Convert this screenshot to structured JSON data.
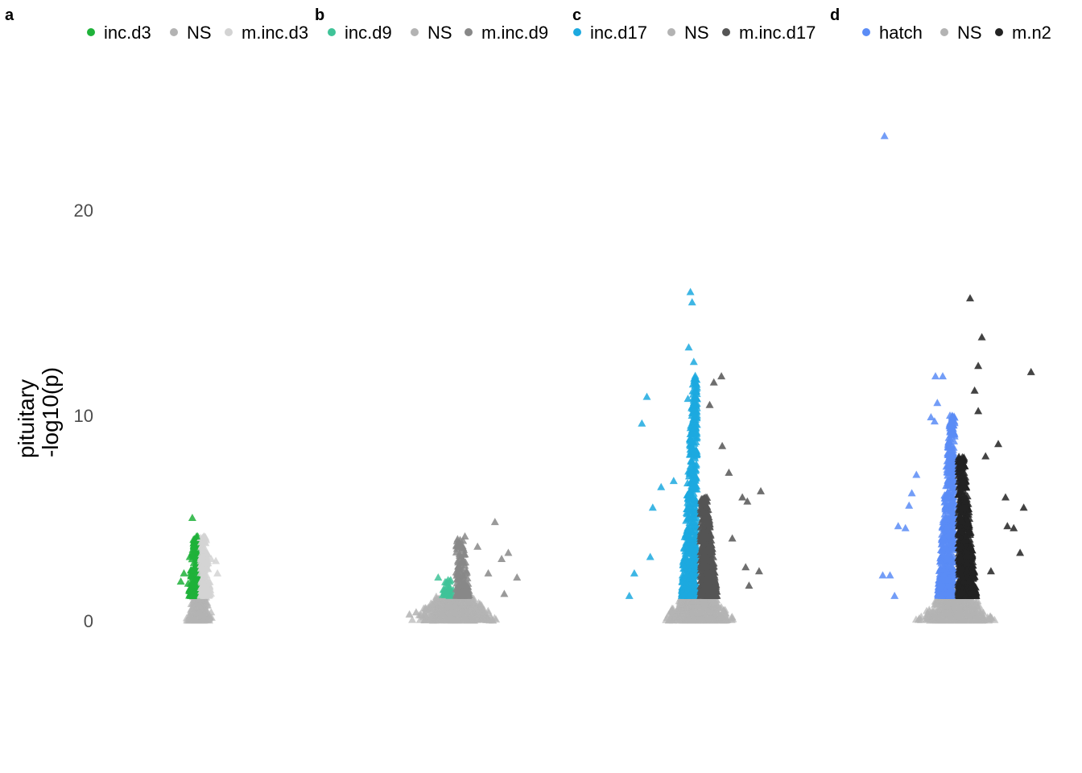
{
  "chart_data": {
    "type": "scatter",
    "ylabel": [
      "pituitary",
      "-log10(p)"
    ],
    "ylim": [
      -5,
      24.5
    ],
    "yticks": [
      0,
      10,
      20
    ],
    "grid": false,
    "legend_position": "top",
    "panels": [
      {
        "letter": "a",
        "legend": [
          {
            "name": "inc.d3",
            "color": "#1fb23a"
          },
          {
            "name": "NS",
            "color": "#b3b3b3"
          },
          {
            "name": "m.inc.d3",
            "color": "#d3d3d3"
          }
        ],
        "highlighted_points": [
          {
            "x": -1.4,
            "y": 5.0,
            "group": "inc.d3"
          },
          {
            "x": -0.6,
            "y": 4.1,
            "group": "inc.d3"
          },
          {
            "x": -1.0,
            "y": 3.6,
            "group": "inc.d3"
          },
          {
            "x": -1.9,
            "y": 3.1,
            "group": "inc.d3"
          },
          {
            "x": -3.0,
            "y": 2.3,
            "group": "inc.d3"
          },
          {
            "x": -3.6,
            "y": 1.9,
            "group": "inc.d3"
          },
          {
            "x": -2.2,
            "y": 1.8,
            "group": "inc.d3"
          },
          {
            "x": 0.8,
            "y": 4.1,
            "group": "m.inc.d3"
          },
          {
            "x": 2.2,
            "y": 3.0,
            "group": "m.inc.d3"
          },
          {
            "x": 3.1,
            "y": 2.9,
            "group": "m.inc.d3"
          },
          {
            "x": 3.4,
            "y": 2.3,
            "group": "m.inc.d3"
          },
          {
            "x": 1.5,
            "y": 1.5,
            "group": "m.inc.d3"
          }
        ]
      },
      {
        "letter": "b",
        "legend": [
          {
            "name": "inc.d9",
            "color": "#3fc398"
          },
          {
            "name": "NS",
            "color": "#b3b3b3"
          },
          {
            "name": "m.inc.d9",
            "color": "#888888"
          }
        ],
        "highlighted_points": [
          {
            "x": -2.5,
            "y": 2.1,
            "group": "inc.d9"
          },
          {
            "x": -0.8,
            "y": 1.9,
            "group": "inc.d9"
          },
          {
            "x": -1.6,
            "y": 1.5,
            "group": "inc.d9"
          },
          {
            "x": -1.1,
            "y": 1.3,
            "group": "inc.d9"
          },
          {
            "x": 1.5,
            "y": 4.1,
            "group": "m.inc.d9"
          },
          {
            "x": 3.4,
            "y": 3.6,
            "group": "m.inc.d9"
          },
          {
            "x": 6.0,
            "y": 4.8,
            "group": "m.inc.d9"
          },
          {
            "x": 8.0,
            "y": 3.3,
            "group": "m.inc.d9"
          },
          {
            "x": 7.0,
            "y": 3.0,
            "group": "m.inc.d9"
          },
          {
            "x": 9.3,
            "y": 2.1,
            "group": "m.inc.d9"
          },
          {
            "x": 5.0,
            "y": 2.3,
            "group": "m.inc.d9"
          },
          {
            "x": 7.4,
            "y": 1.3,
            "group": "m.inc.d9"
          },
          {
            "x": -6.8,
            "y": 0.3,
            "group": "NS"
          },
          {
            "x": -5.8,
            "y": 0.4,
            "group": "NS"
          }
        ]
      },
      {
        "letter": "c",
        "legend": [
          {
            "name": "inc.d17",
            "color": "#1ca9df"
          },
          {
            "name": "NS",
            "color": "#b3b3b3"
          },
          {
            "name": "m.inc.d17",
            "color": "#555555"
          }
        ],
        "highlighted_points": [
          {
            "x": -1.0,
            "y": 16.0,
            "group": "inc.d17"
          },
          {
            "x": -0.8,
            "y": 15.5,
            "group": "inc.d17"
          },
          {
            "x": -1.2,
            "y": 13.3,
            "group": "inc.d17"
          },
          {
            "x": -0.6,
            "y": 12.6,
            "group": "inc.d17"
          },
          {
            "x": -0.7,
            "y": 11.5,
            "group": "inc.d17"
          },
          {
            "x": -6.2,
            "y": 10.9,
            "group": "inc.d17"
          },
          {
            "x": -6.8,
            "y": 9.6,
            "group": "inc.d17"
          },
          {
            "x": -1.3,
            "y": 10.8,
            "group": "inc.d17"
          },
          {
            "x": -3.0,
            "y": 6.8,
            "group": "inc.d17"
          },
          {
            "x": -4.5,
            "y": 6.5,
            "group": "inc.d17"
          },
          {
            "x": -5.5,
            "y": 5.5,
            "group": "inc.d17"
          },
          {
            "x": -5.8,
            "y": 3.1,
            "group": "inc.d17"
          },
          {
            "x": -7.7,
            "y": 2.3,
            "group": "inc.d17"
          },
          {
            "x": -8.3,
            "y": 1.2,
            "group": "inc.d17"
          },
          {
            "x": 1.8,
            "y": 11.6,
            "group": "m.inc.d17"
          },
          {
            "x": 2.7,
            "y": 11.9,
            "group": "m.inc.d17"
          },
          {
            "x": 1.3,
            "y": 10.5,
            "group": "m.inc.d17"
          },
          {
            "x": 2.8,
            "y": 8.5,
            "group": "m.inc.d17"
          },
          {
            "x": 3.6,
            "y": 7.2,
            "group": "m.inc.d17"
          },
          {
            "x": 7.4,
            "y": 6.3,
            "group": "m.inc.d17"
          },
          {
            "x": 5.2,
            "y": 6.0,
            "group": "m.inc.d17"
          },
          {
            "x": 5.8,
            "y": 5.8,
            "group": "m.inc.d17"
          },
          {
            "x": 4.0,
            "y": 4.0,
            "group": "m.inc.d17"
          },
          {
            "x": 7.2,
            "y": 2.4,
            "group": "m.inc.d17"
          },
          {
            "x": 5.6,
            "y": 2.6,
            "group": "m.inc.d17"
          },
          {
            "x": 6.0,
            "y": 1.7,
            "group": "m.inc.d17"
          }
        ]
      },
      {
        "letter": "d",
        "legend": [
          {
            "name": "hatch",
            "color": "#5b8cf6"
          },
          {
            "name": "NS",
            "color": "#b3b3b3"
          },
          {
            "name": "m.n2",
            "color": "#222222"
          }
        ],
        "highlighted_points": [
          {
            "x": -7.9,
            "y": 23.6,
            "group": "hatch"
          },
          {
            "x": -2.3,
            "y": 11.9,
            "group": "hatch"
          },
          {
            "x": -1.5,
            "y": 11.9,
            "group": "hatch"
          },
          {
            "x": -2.1,
            "y": 10.6,
            "group": "hatch"
          },
          {
            "x": -2.8,
            "y": 9.9,
            "group": "hatch"
          },
          {
            "x": -2.4,
            "y": 9.7,
            "group": "hatch"
          },
          {
            "x": -4.4,
            "y": 7.1,
            "group": "hatch"
          },
          {
            "x": -4.9,
            "y": 6.2,
            "group": "hatch"
          },
          {
            "x": -5.2,
            "y": 5.6,
            "group": "hatch"
          },
          {
            "x": -5.6,
            "y": 4.5,
            "group": "hatch"
          },
          {
            "x": -6.4,
            "y": 4.6,
            "group": "hatch"
          },
          {
            "x": -8.1,
            "y": 2.2,
            "group": "hatch"
          },
          {
            "x": -7.3,
            "y": 2.2,
            "group": "hatch"
          },
          {
            "x": -6.8,
            "y": 1.2,
            "group": "hatch"
          },
          {
            "x": 1.5,
            "y": 15.7,
            "group": "m.n2"
          },
          {
            "x": 2.8,
            "y": 13.8,
            "group": "m.n2"
          },
          {
            "x": 2.4,
            "y": 12.4,
            "group": "m.n2"
          },
          {
            "x": 8.2,
            "y": 12.1,
            "group": "m.n2"
          },
          {
            "x": 2.0,
            "y": 11.2,
            "group": "m.n2"
          },
          {
            "x": 2.4,
            "y": 10.2,
            "group": "m.n2"
          },
          {
            "x": 4.6,
            "y": 8.6,
            "group": "m.n2"
          },
          {
            "x": 3.2,
            "y": 8.0,
            "group": "m.n2"
          },
          {
            "x": 5.4,
            "y": 6.0,
            "group": "m.n2"
          },
          {
            "x": 7.4,
            "y": 5.5,
            "group": "m.n2"
          },
          {
            "x": 5.6,
            "y": 4.6,
            "group": "m.n2"
          },
          {
            "x": 6.3,
            "y": 4.5,
            "group": "m.n2"
          },
          {
            "x": 7.0,
            "y": 3.3,
            "group": "m.n2"
          },
          {
            "x": 3.8,
            "y": 2.4,
            "group": "m.n2"
          }
        ]
      }
    ]
  }
}
